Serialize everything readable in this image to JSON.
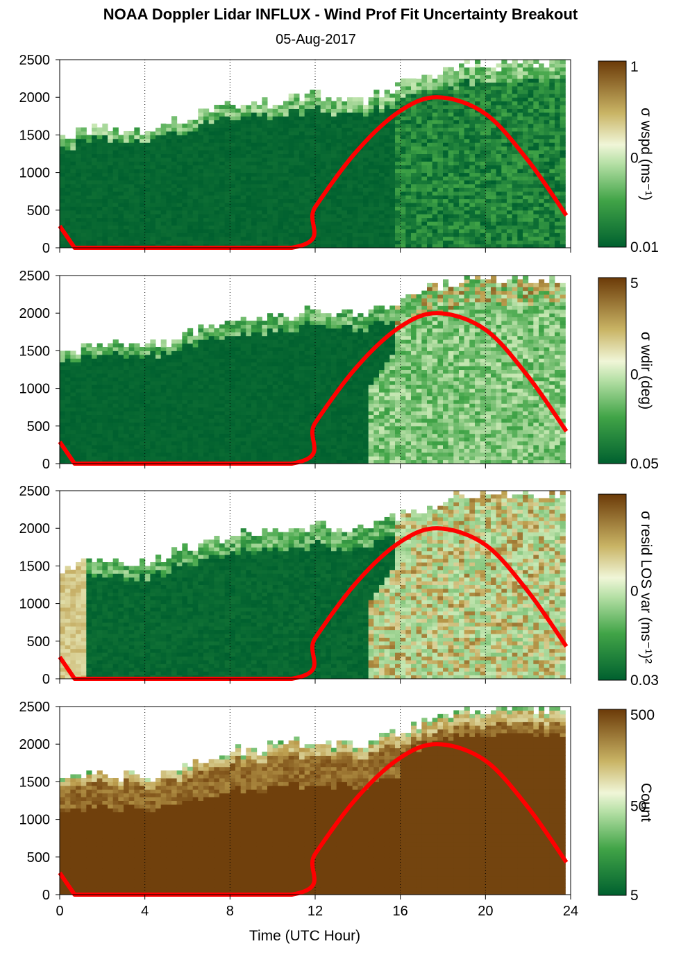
{
  "title": "NOAA Doppler Lidar INFLUX - Wind Prof Fit Uncertainty Breakout",
  "subtitle": "05-Aug-2017",
  "colors": {
    "dark_green": "#00602f",
    "light": "#f0f6d8",
    "dark_brown": "#6b3a08",
    "curve": "#ff0000"
  },
  "chart_data": [
    {
      "type": "heatmap",
      "panel": "wspd",
      "xlabel": "",
      "ylabel": "",
      "xlim": [
        0,
        24
      ],
      "ylim": [
        0,
        2500
      ],
      "x_ticks": [
        0,
        4,
        8,
        12,
        16,
        20,
        24
      ],
      "y_ticks": [
        "0",
        "500",
        "1000",
        "1500",
        "2000",
        "2500"
      ],
      "colorbar": {
        "label": "σ wspd (ms⁻¹)",
        "ticks": [
          "1",
          "0",
          "0.01"
        ],
        "scale": "log"
      },
      "red_curve": {
        "x": [
          0,
          0.7,
          10.9,
          12,
          14,
          16,
          17.8,
          20,
          22,
          23.8
        ],
        "y": [
          290,
          0,
          0,
          540,
          1300,
          1820,
          2000,
          1780,
          1160,
          430
        ]
      },
      "data_top_height": [
        [
          0,
          1480
        ],
        [
          2,
          1650
        ],
        [
          4,
          1550
        ],
        [
          6,
          1760
        ],
        [
          8,
          1920
        ],
        [
          10,
          1980
        ],
        [
          12,
          2080
        ],
        [
          14,
          1980
        ],
        [
          16,
          2200
        ],
        [
          18,
          2400
        ],
        [
          20,
          2500
        ],
        [
          24,
          2500
        ]
      ]
    },
    {
      "type": "heatmap",
      "panel": "wdir",
      "xlabel": "",
      "ylabel": "",
      "xlim": [
        0,
        24
      ],
      "ylim": [
        0,
        2500
      ],
      "x_ticks": [
        0,
        4,
        8,
        12,
        16,
        20,
        24
      ],
      "y_ticks": [
        "0",
        "500",
        "1000",
        "1500",
        "2000",
        "2500"
      ],
      "colorbar": {
        "label": "σ wdir (deg)",
        "ticks": [
          "5",
          "0",
          "0.05"
        ],
        "scale": "log"
      },
      "red_curve": {
        "x": [
          0,
          0.7,
          10.9,
          12,
          14,
          16,
          17.8,
          20,
          22,
          23.8
        ],
        "y": [
          290,
          0,
          0,
          540,
          1300,
          1820,
          2000,
          1780,
          1160,
          430
        ]
      },
      "data_top_height": [
        [
          0,
          1480
        ],
        [
          2,
          1650
        ],
        [
          4,
          1550
        ],
        [
          6,
          1760
        ],
        [
          8,
          1920
        ],
        [
          10,
          1980
        ],
        [
          12,
          2080
        ],
        [
          14,
          1980
        ],
        [
          16,
          2200
        ],
        [
          18,
          2400
        ],
        [
          20,
          2500
        ],
        [
          24,
          2500
        ]
      ]
    },
    {
      "type": "heatmap",
      "panel": "resid",
      "xlabel": "",
      "ylabel": "",
      "xlim": [
        0,
        24
      ],
      "ylim": [
        0,
        2500
      ],
      "x_ticks": [
        0,
        4,
        8,
        12,
        16,
        20,
        24
      ],
      "y_ticks": [
        "0",
        "500",
        "1000",
        "1500",
        "2000",
        "2500"
      ],
      "colorbar": {
        "label": "σ resid LOS var (ms⁻¹)²",
        "ticks": [
          "",
          "0",
          "0.03"
        ],
        "scale": "log"
      },
      "red_curve": {
        "x": [
          0,
          0.7,
          10.9,
          12,
          14,
          16,
          17.8,
          20,
          22,
          23.8
        ],
        "y": [
          290,
          0,
          0,
          540,
          1300,
          1820,
          2000,
          1780,
          1160,
          430
        ]
      },
      "data_top_height": [
        [
          0,
          1480
        ],
        [
          2,
          1650
        ],
        [
          4,
          1550
        ],
        [
          6,
          1760
        ],
        [
          8,
          1920
        ],
        [
          10,
          1980
        ],
        [
          12,
          2080
        ],
        [
          14,
          1980
        ],
        [
          16,
          2200
        ],
        [
          18,
          2400
        ],
        [
          20,
          2500
        ],
        [
          24,
          2500
        ]
      ]
    },
    {
      "type": "heatmap",
      "panel": "count",
      "xlabel": "Time (UTC Hour)",
      "ylabel": "",
      "xlim": [
        0,
        24
      ],
      "ylim": [
        0,
        2500
      ],
      "x_ticks": [
        0,
        4,
        8,
        12,
        16,
        20,
        24
      ],
      "y_ticks": [
        "0",
        "500",
        "1000",
        "1500",
        "2000",
        "2500"
      ],
      "colorbar": {
        "label": "Count",
        "ticks": [
          "500",
          "50",
          "5"
        ],
        "scale": "log"
      },
      "red_curve": {
        "x": [
          0,
          0.7,
          10.9,
          12,
          14,
          16,
          17.8,
          20,
          22,
          23.8
        ],
        "y": [
          290,
          0,
          0,
          540,
          1300,
          1820,
          2000,
          1780,
          1160,
          430
        ]
      },
      "data_top_height": [
        [
          0,
          1480
        ],
        [
          2,
          1650
        ],
        [
          4,
          1550
        ],
        [
          6,
          1760
        ],
        [
          8,
          1920
        ],
        [
          10,
          1980
        ],
        [
          12,
          2080
        ],
        [
          14,
          1980
        ],
        [
          16,
          2200
        ],
        [
          18,
          2400
        ],
        [
          20,
          2500
        ],
        [
          24,
          2500
        ]
      ]
    }
  ]
}
